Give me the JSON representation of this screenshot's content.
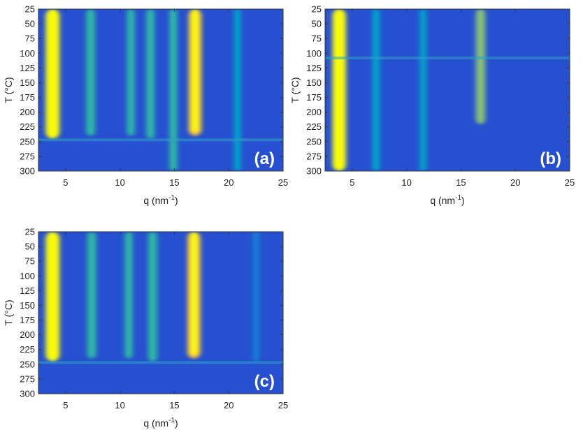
{
  "chart_data": [
    {
      "type": "heatmap",
      "panel_label": "(a)",
      "xlabel_base": "q (nm",
      "xlabel_sup": "-1",
      "xlabel_end": ")",
      "ylabel": "T (°C)",
      "xlim": [
        2.5,
        25
      ],
      "ylim": [
        25,
        300
      ],
      "y_reversed": true,
      "xticks": [
        5,
        10,
        15,
        20,
        25
      ],
      "yticks": [
        25,
        50,
        75,
        100,
        125,
        150,
        175,
        200,
        225,
        250,
        275,
        300
      ],
      "colormap": "parula",
      "features": [
        {
          "q": 3.8,
          "t_start": 25,
          "t_end": 245,
          "intensity": 1.0
        },
        {
          "q": 7.3,
          "t_start": 25,
          "t_end": 240,
          "intensity": 0.55
        },
        {
          "q": 11.0,
          "t_start": 25,
          "t_end": 240,
          "intensity": 0.45
        },
        {
          "q": 12.8,
          "t_start": 25,
          "t_end": 245,
          "intensity": 0.5
        },
        {
          "q": 14.9,
          "t_start": 25,
          "t_end": 300,
          "intensity": 0.45
        },
        {
          "q": 16.9,
          "t_start": 25,
          "t_end": 240,
          "intensity": 0.9
        },
        {
          "q": 20.8,
          "t_start": 25,
          "t_end": 300,
          "intensity": 0.35
        }
      ],
      "transition_T": 247
    },
    {
      "type": "heatmap",
      "panel_label": "(b)",
      "xlabel_base": "q (nm",
      "xlabel_sup": "-1",
      "xlabel_end": ")",
      "ylabel": "T (°C)",
      "xlim": [
        2.5,
        25
      ],
      "ylim": [
        25,
        300
      ],
      "y_reversed": true,
      "xticks": [
        5,
        10,
        15,
        20,
        25
      ],
      "yticks": [
        25,
        50,
        75,
        100,
        125,
        150,
        175,
        200,
        225,
        250,
        275,
        300
      ],
      "colormap": "parula",
      "features": [
        {
          "q": 3.8,
          "t_start": 25,
          "t_end": 300,
          "intensity": 0.95
        },
        {
          "q": 7.2,
          "t_start": 25,
          "t_end": 300,
          "intensity": 0.4
        },
        {
          "q": 11.5,
          "t_start": 25,
          "t_end": 300,
          "intensity": 0.35
        },
        {
          "q": 16.8,
          "t_start": 25,
          "t_end": 220,
          "intensity": 0.6
        }
      ],
      "transition_T": 108
    },
    {
      "type": "heatmap",
      "panel_label": "(c)",
      "xlabel_base": "q (nm",
      "xlabel_sup": "-1",
      "xlabel_end": ")",
      "ylabel": "T (°C)",
      "xlim": [
        2.5,
        25
      ],
      "ylim": [
        25,
        300
      ],
      "y_reversed": true,
      "xticks": [
        5,
        10,
        15,
        20,
        25
      ],
      "yticks": [
        25,
        50,
        75,
        100,
        125,
        150,
        175,
        200,
        225,
        250,
        275,
        300
      ],
      "colormap": "parula",
      "features": [
        {
          "q": 3.8,
          "t_start": 25,
          "t_end": 245,
          "intensity": 1.0
        },
        {
          "q": 7.4,
          "t_start": 25,
          "t_end": 240,
          "intensity": 0.55
        },
        {
          "q": 10.8,
          "t_start": 25,
          "t_end": 240,
          "intensity": 0.45
        },
        {
          "q": 13.0,
          "t_start": 25,
          "t_end": 245,
          "intensity": 0.55
        },
        {
          "q": 16.8,
          "t_start": 25,
          "t_end": 240,
          "intensity": 0.9
        },
        {
          "q": 22.5,
          "t_start": 25,
          "t_end": 245,
          "intensity": 0.3
        }
      ],
      "transition_T": 247
    }
  ]
}
